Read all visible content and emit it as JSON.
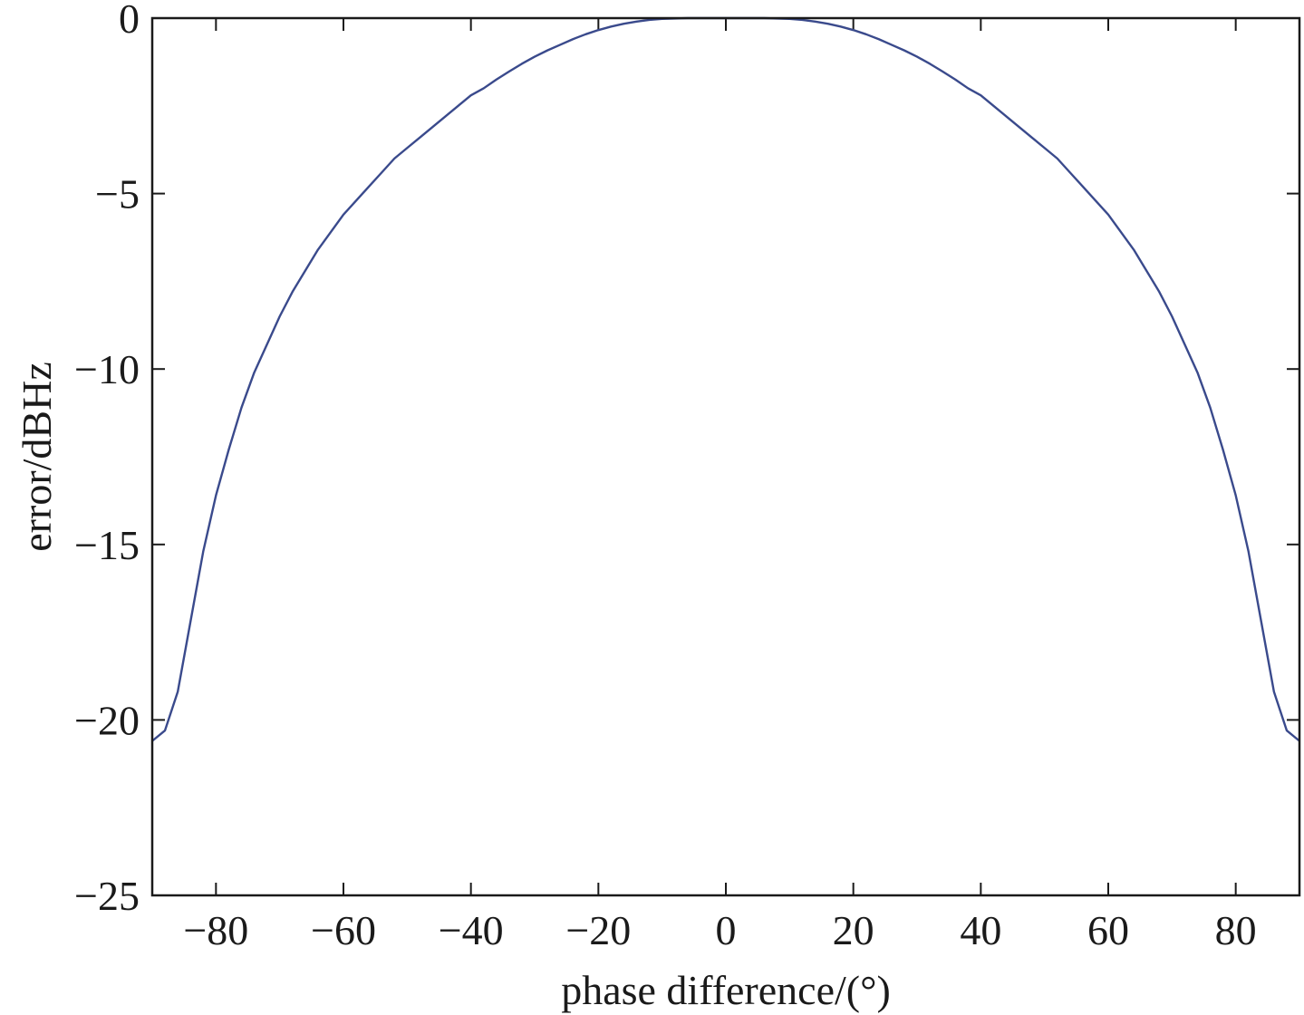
{
  "chart_data": {
    "type": "line",
    "xlabel": "phase difference/(°)",
    "ylabel": "error/dBHz",
    "xlim": [
      -90,
      90
    ],
    "ylim": [
      -25,
      0
    ],
    "xticks": [
      -80,
      -60,
      -40,
      -20,
      0,
      20,
      40,
      60,
      80
    ],
    "yticks": [
      0,
      -5,
      -10,
      -15,
      -20,
      -25
    ],
    "xtick_labels": [
      "−80",
      "−60",
      "−40",
      "−20",
      "0",
      "20",
      "40",
      "60",
      "80"
    ],
    "ytick_labels": [
      "0",
      "−5",
      "−10",
      "−15",
      "−20",
      "−25"
    ],
    "grid": false,
    "colors": {
      "line": "#3a4a8c",
      "axis": "#1a1a1a"
    },
    "series": [
      {
        "x": [
          -90,
          -88,
          -86,
          -84,
          -82,
          -80,
          -78,
          -76,
          -74,
          -72,
          -70,
          -68,
          -66,
          -64,
          -62,
          -60,
          -58,
          -56,
          -54,
          -52,
          -50,
          -48,
          -46,
          -44,
          -42,
          -40,
          -38,
          -36,
          -34,
          -32,
          -30,
          -28,
          -26,
          -24,
          -22,
          -20,
          -18,
          -16,
          -14,
          -12,
          -10,
          -8,
          -6,
          -4,
          -2,
          0,
          2,
          4,
          6,
          8,
          10,
          12,
          14,
          16,
          18,
          20,
          22,
          24,
          26,
          28,
          30,
          32,
          34,
          36,
          38,
          40,
          42,
          44,
          46,
          48,
          50,
          52,
          54,
          56,
          58,
          60,
          62,
          64,
          66,
          68,
          70,
          72,
          74,
          76,
          78,
          80,
          82,
          84,
          86,
          88,
          90
        ],
        "values": [
          -20.6,
          -20.3,
          -19.2,
          -17.2,
          -15.2,
          -13.6,
          -12.3,
          -11.1,
          -10.1,
          -9.3,
          -8.5,
          -7.8,
          -7.2,
          -6.6,
          -6.1,
          -5.6,
          -5.2,
          -4.8,
          -4.4,
          -4.0,
          -3.7,
          -3.4,
          -3.1,
          -2.8,
          -2.5,
          -2.2,
          -2.0,
          -1.75,
          -1.52,
          -1.3,
          -1.1,
          -0.92,
          -0.76,
          -0.6,
          -0.46,
          -0.34,
          -0.24,
          -0.16,
          -0.1,
          -0.05,
          -0.02,
          -0.01,
          0,
          0,
          0,
          0,
          0,
          0,
          0,
          -0.01,
          -0.02,
          -0.05,
          -0.1,
          -0.16,
          -0.24,
          -0.34,
          -0.46,
          -0.6,
          -0.76,
          -0.92,
          -1.1,
          -1.3,
          -1.52,
          -1.75,
          -2.0,
          -2.2,
          -2.5,
          -2.8,
          -3.1,
          -3.4,
          -3.7,
          -4.0,
          -4.4,
          -4.8,
          -5.2,
          -5.6,
          -6.1,
          -6.6,
          -7.2,
          -7.8,
          -8.5,
          -9.3,
          -10.1,
          -11.1,
          -12.3,
          -13.6,
          -15.2,
          -17.2,
          -19.2,
          -20.3,
          -20.6
        ]
      }
    ]
  }
}
